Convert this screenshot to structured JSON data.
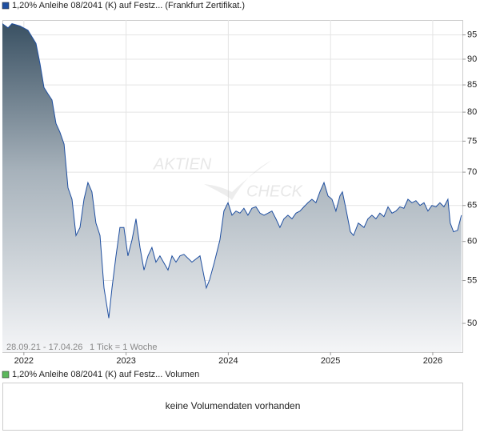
{
  "chart_data": {
    "type": "area",
    "series": [
      {
        "name": "1,20% Anleihe 08/2041 (K) auf Festz... (Frankfurt Zertifikat.)",
        "color": "#1f4fa0",
        "x": [
          2021.79,
          2021.845,
          2021.884,
          2021.962,
          2022.04,
          2022.119,
          2022.158,
          2022.197,
          2022.236,
          2022.275,
          2022.314,
          2022.353,
          2022.393,
          2022.432,
          2022.471,
          2022.51,
          2022.549,
          2022.588,
          2022.627,
          2022.666,
          2022.705,
          2022.745,
          2022.784,
          2022.831,
          2022.862,
          2022.901,
          2022.94,
          2022.979,
          2023.018,
          2023.058,
          2023.097,
          2023.136,
          2023.175,
          2023.214,
          2023.253,
          2023.292,
          2023.331,
          2023.41,
          2023.449,
          2023.488,
          2023.527,
          2023.566,
          2023.644,
          2023.723,
          2023.785,
          2023.817,
          2023.864,
          2023.918,
          2023.957,
          2023.997,
          2024.036,
          2024.075,
          2024.114,
          2024.153,
          2024.192,
          2024.231,
          2024.27,
          2024.31,
          2024.349,
          2024.388,
          2024.427,
          2024.466,
          2024.505,
          2024.544,
          2024.583,
          2024.623,
          2024.662,
          2024.701,
          2024.74,
          2024.779,
          2024.818,
          2024.857,
          2024.896,
          2024.936,
          2024.975,
          2025.014,
          2025.053,
          2025.092,
          2025.116,
          2025.147,
          2025.194,
          2025.225,
          2025.272,
          2025.327,
          2025.366,
          2025.405,
          2025.444,
          2025.483,
          2025.522,
          2025.562,
          2025.601,
          2025.64,
          2025.679,
          2025.718,
          2025.757,
          2025.796,
          2025.835,
          2025.875,
          2025.914,
          2025.953,
          2025.992,
          2026.031,
          2026.07,
          2026.109,
          2026.148,
          2026.171,
          2026.203,
          2026.242,
          2026.281
        ],
        "values": [
          97.4,
          96.5,
          97.4,
          96.9,
          96.0,
          93.2,
          89.1,
          84.5,
          83.3,
          82.2,
          78.0,
          76.5,
          74.5,
          67.6,
          65.9,
          60.8,
          61.9,
          65.9,
          68.4,
          67.0,
          62.5,
          60.8,
          54.1,
          50.6,
          54.1,
          58.1,
          61.9,
          61.9,
          58.1,
          60.2,
          63.1,
          59.2,
          56.3,
          58.1,
          59.2,
          57.3,
          58.1,
          56.3,
          58.1,
          57.3,
          58.1,
          58.3,
          57.3,
          58.1,
          54.1,
          55.1,
          57.3,
          60.2,
          64.2,
          65.4,
          63.6,
          64.2,
          63.9,
          64.6,
          63.6,
          64.6,
          64.8,
          63.9,
          63.6,
          63.9,
          64.2,
          63.1,
          61.9,
          63.1,
          63.6,
          63.1,
          63.9,
          64.2,
          64.8,
          65.4,
          65.9,
          65.4,
          67.0,
          68.4,
          66.4,
          65.9,
          64.2,
          66.4,
          67.0,
          64.8,
          61.3,
          60.8,
          62.5,
          61.9,
          63.1,
          63.6,
          63.1,
          63.9,
          63.4,
          64.8,
          63.9,
          64.2,
          64.8,
          64.6,
          65.9,
          65.4,
          65.7,
          65.0,
          65.4,
          64.2,
          65.0,
          64.8,
          65.4,
          64.8,
          65.9,
          62.5,
          61.3,
          61.5,
          63.6
        ]
      }
    ],
    "xlim": [
      2021.79,
      2026.29
    ],
    "xticks": [
      2022,
      2023,
      2024,
      2025,
      2026
    ],
    "ylim": [
      46.9,
      98.2
    ],
    "yticks": [
      50,
      55,
      60,
      65,
      70,
      75,
      80,
      85,
      90,
      95
    ],
    "log_scale": true,
    "grid": true,
    "range_note": "28.09.21 - 17.04.26",
    "tick_note": "1 Tick = 1 Woche",
    "watermark": [
      "AKTIEN",
      "CHECK"
    ]
  },
  "volume_panel": {
    "title": "1,20% Anleihe 08/2041 (K) auf Festz... Volumen",
    "color": "#5cb85c",
    "message": "keine Volumendaten vorhanden"
  }
}
